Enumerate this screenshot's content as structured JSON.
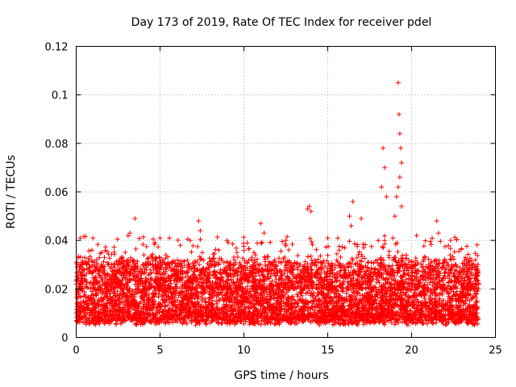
{
  "chart_data": {
    "type": "scatter",
    "title": "Day 173 of 2019, Rate Of TEC Index for receiver pdel",
    "xlabel": "GPS time / hours",
    "ylabel": "ROTI / TECUs",
    "xlim": [
      0,
      25
    ],
    "ylim": [
      0,
      0.12
    ],
    "xticks": [
      0,
      5,
      10,
      15,
      20,
      25
    ],
    "yticks": [
      0,
      0.02,
      0.04,
      0.06,
      0.08,
      0.1,
      0.12
    ],
    "xtick_labels": [
      "0",
      "5",
      "10",
      "15",
      "20",
      "25"
    ],
    "ytick_labels": [
      "0",
      "0.02",
      "0.04",
      "0.06",
      "0.08",
      "0.1",
      "0.12"
    ],
    "grid": true,
    "marker": "+",
    "series": [
      {
        "name": "ROTI",
        "color": "#ff0000",
        "x_range": [
          0,
          24
        ],
        "dense_band": [
          0.005,
          0.03
        ],
        "points": [
          [
            3.5,
            0.049
          ],
          [
            7.3,
            0.048
          ],
          [
            7.4,
            0.044
          ],
          [
            11.0,
            0.047
          ],
          [
            11.2,
            0.043
          ],
          [
            13.8,
            0.053
          ],
          [
            13.9,
            0.054
          ],
          [
            14.0,
            0.052
          ],
          [
            16.3,
            0.05
          ],
          [
            16.5,
            0.056
          ],
          [
            16.4,
            0.046
          ],
          [
            17.0,
            0.049
          ],
          [
            18.3,
            0.078
          ],
          [
            18.4,
            0.07
          ],
          [
            18.2,
            0.062
          ],
          [
            18.5,
            0.058
          ],
          [
            19.2,
            0.105
          ],
          [
            19.25,
            0.092
          ],
          [
            19.3,
            0.084
          ],
          [
            19.35,
            0.078
          ],
          [
            19.4,
            0.072
          ],
          [
            19.3,
            0.066
          ],
          [
            19.2,
            0.062
          ],
          [
            19.1,
            0.058
          ],
          [
            19.4,
            0.054
          ],
          [
            19.0,
            0.05
          ],
          [
            21.5,
            0.048
          ],
          [
            21.6,
            0.043
          ],
          [
            23.8,
            0.026
          ],
          [
            3.2,
            0.043
          ],
          [
            5.0,
            0.041
          ],
          [
            6.8,
            0.04
          ],
          [
            9.0,
            0.04
          ],
          [
            12.5,
            0.04
          ],
          [
            1.0,
            0.041
          ],
          [
            15.0,
            0.041
          ],
          [
            20.3,
            0.042
          ],
          [
            22.3,
            0.034
          ],
          [
            10.2,
            0.039
          ],
          [
            8.5,
            0.036
          ]
        ]
      }
    ]
  }
}
